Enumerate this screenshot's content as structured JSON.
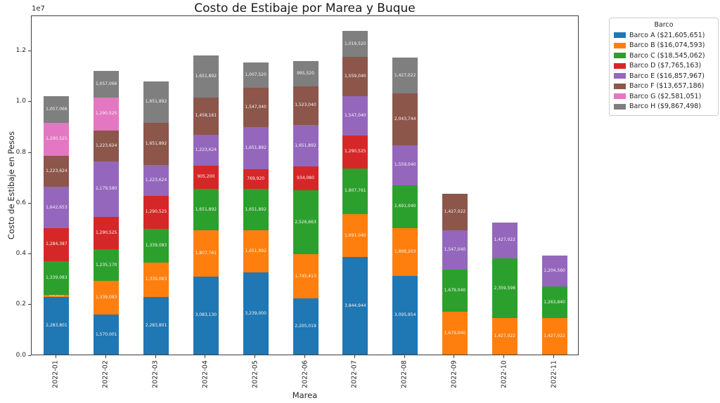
{
  "chart_data": {
    "type": "bar",
    "stacked": true,
    "title": "Costo de Estibaje por Marea y Buque",
    "xlabel": "Marea",
    "ylabel": "Costo de Estibaje en Pesos",
    "axis_offset_label": "1e7",
    "ylim": [
      0,
      13400000
    ],
    "grid": false,
    "legend_position": "outside-upper-right",
    "y_tick_values": [
      0,
      2000000,
      4000000,
      6000000,
      8000000,
      10000000,
      12000000
    ],
    "y_tick_labels": [
      "0.0",
      "0.2",
      "0.4",
      "0.6",
      "0.8",
      "1.0",
      "1.2"
    ],
    "categories": [
      "2022-01",
      "2022-02",
      "2022-03",
      "2022-04",
      "2022-05",
      "2022-06",
      "2022-07",
      "2022-08",
      "2022-09",
      "2022-10",
      "2022-11"
    ],
    "legend": {
      "title": "Barco"
    },
    "series": [
      {
        "name": "Barco A",
        "legend_label": "Barco A ($21,605,651)",
        "color": "#1f77b4",
        "values": [
          2283801,
          1570001,
          2283801,
          3083130,
          3239000,
          2205019,
          3844944,
          3095954,
          0,
          0,
          0
        ]
      },
      {
        "name": "Barco B",
        "legend_label": "Barco B ($16,074,593)",
        "color": "#ff7f0e",
        "values": [
          69033,
          1339083,
          1339083,
          1807761,
          1651892,
          1745413,
          1691040,
          1898203,
          1679040,
          1427022,
          1427022
        ]
      },
      {
        "name": "Barco C",
        "legend_label": "Barco C ($18,545,062)",
        "color": "#2ca02c",
        "values": [
          1339083,
          1235170,
          1339083,
          1651892,
          1651892,
          2526663,
          1807761,
          1691040,
          1679040,
          2359598,
          1263840
        ]
      },
      {
        "name": "Barco D",
        "legend_label": "Barco D ($7,765,163)",
        "color": "#d62728",
        "values": [
          1284387,
          1290525,
          1290525,
          905200,
          769920,
          934080,
          1290525,
          0,
          0,
          0,
          0
        ]
      },
      {
        "name": "Barco E",
        "legend_label": "Barco E ($16,857,967)",
        "color": "#9467bd",
        "values": [
          1642653,
          2179580,
          1223624,
          1223624,
          1651892,
          1651892,
          1547040,
          1559040,
          1547040,
          1427022,
          1204560
        ]
      },
      {
        "name": "Barco F",
        "legend_label": "Barco F ($13,657,186)",
        "color": "#8c564b",
        "values": [
          1223624,
          1223624,
          1651892,
          1458161,
          1547040,
          1523040,
          1559040,
          2043744,
          1427022,
          0,
          0
        ]
      },
      {
        "name": "Barco G",
        "legend_label": "Barco G ($2,581,051)",
        "color": "#e377c2",
        "values": [
          1290525,
          1290525,
          0,
          0,
          0,
          0,
          0,
          0,
          0,
          0,
          0
        ]
      },
      {
        "name": "Barco H",
        "legend_label": "Barco H ($9,867,498)",
        "color": "#7f7f7f",
        "values": [
          1057066,
          1057066,
          1651892,
          1651892,
          1007520,
          995520,
          1019520,
          1427022,
          0,
          0,
          0
        ]
      }
    ]
  }
}
